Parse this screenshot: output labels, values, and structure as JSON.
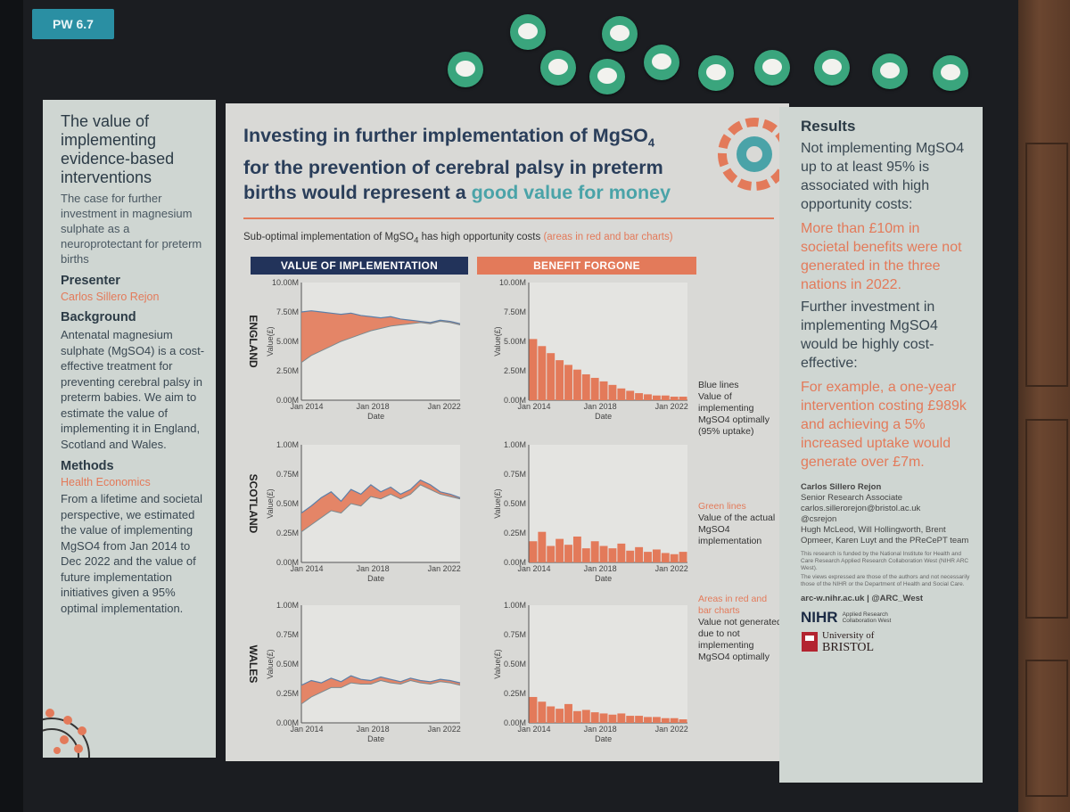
{
  "tag": "PW 6.7",
  "left": {
    "title": "The value of implementing evidence-based interventions",
    "subtitle": "The case for further investment in magnesium sulphate as a neuroprotectant for preterm births",
    "presenter_heading": "Presenter",
    "presenter_name": "Carlos Sillero Rejon",
    "background_heading": "Background",
    "background_text": "Antenatal magnesium sulphate (MgSO4) is a cost-effective treatment for preventing cerebral palsy in preterm babies. We aim to estimate the value of implementing it in England, Scotland and Wales.",
    "methods_heading": "Methods",
    "methods_subheading": "Health Economics",
    "methods_text": "From a lifetime and societal perspective, we estimated the value of implementing MgSO4 from Jan 2014 to Dec 2022 and the value of future implementation initiatives given a 95% optimal implementation."
  },
  "middle": {
    "title_line1": "Investing in further implementation of MgSO",
    "title_sub": "4",
    "title_line2": "for the prevention of cerebral palsy in preterm",
    "title_line3_a": "births would represent a ",
    "title_line3_b": "good value for money",
    "subheading_a": "Sub-optimal implementation of MgSO",
    "subheading_sub": "4",
    "subheading_b": " has high opportunity costs ",
    "subheading_c": "(areas in red and bar charts)",
    "col_header_left": "VALUE OF IMPLEMENTATION",
    "col_header_right": "BENEFIT FORGONE",
    "notes": {
      "blue_title": "Blue lines",
      "blue_text": "Value of implementing MgSO4 optimally (95% uptake)",
      "green_title": "Green lines",
      "green_text": "Value of the actual MgSO4 implementation",
      "red_title": "Areas in red and bar charts",
      "red_text": "Value not generated due to not implementing MgSO4 optimally"
    }
  },
  "right": {
    "heading": "Results",
    "text1": "Not implementing MgSO4 up to at least 95% is associated with high opportunity costs:",
    "highlight1": "More than £10m in societal benefits were not generated in the three nations in 2022.",
    "text2": "Further investment in implementing MgSO4 would be highly cost-effective:",
    "highlight2": "For example, a one-year intervention costing £989k and achieving a 5% increased uptake would generate over £7m.",
    "author_name": "Carlos Sillero Rejon",
    "author_role": "Senior Research Associate",
    "author_email": "carlos.sillerorejon@bristol.ac.uk",
    "author_handle": "@csrejon",
    "coauthors": "Hugh McLeod, Will Hollingworth, Brent Opmeer, Karen Luyt and the PReCePT team",
    "funding": "This research is funded by the National Institute for Health and Care Research Applied Research Collaboration West (NIHR ARC West).",
    "disclaimer": "The views expressed are those of the authors and not necessarily those of the NIHR or the Department of Health and Social Care.",
    "website": "arc-w.nihr.ac.uk | @ARC_West",
    "nihr": "NIHR",
    "nihr_sub": "Applied Research Collaboration West",
    "uni1": "University of",
    "uni2": "BRISTOL"
  },
  "chart_data": [
    {
      "type": "area",
      "region": "ENGLAND",
      "panel": "VALUE OF IMPLEMENTATION",
      "ylabel": "Value(£)",
      "xlabel": "Date",
      "yticks": [
        "0.00M",
        "2.50M",
        "5.00M",
        "7.50M",
        "10.00M"
      ],
      "xticks": [
        "Jan 2014",
        "Jan 2018",
        "Jan 2022"
      ],
      "ylim": [
        0,
        10
      ],
      "unit": "M",
      "series": [
        {
          "values": [
            7.5,
            7.6,
            7.5,
            7.4,
            7.3,
            7.4,
            7.2,
            7.1,
            7.0,
            7.1,
            6.9,
            6.8,
            6.7,
            6.6,
            6.8,
            6.7,
            6.5
          ]
        },
        {
          "values": [
            3.2,
            3.8,
            4.2,
            4.6,
            5.0,
            5.3,
            5.6,
            5.9,
            6.1,
            6.3,
            6.4,
            6.5,
            6.6,
            6.5,
            6.7,
            6.6,
            6.4
          ]
        }
      ]
    },
    {
      "type": "area",
      "region": "SCOTLAND",
      "panel": "VALUE OF IMPLEMENTATION",
      "ylabel": "Value(£)",
      "xlabel": "Date",
      "yticks": [
        "0.00M",
        "0.25M",
        "0.50M",
        "0.75M",
        "1.00M"
      ],
      "xticks": [
        "Jan 2014",
        "Jan 2018",
        "Jan 2022"
      ],
      "ylim": [
        0,
        1
      ],
      "unit": "M",
      "series": [
        {
          "values": [
            0.42,
            0.48,
            0.55,
            0.6,
            0.52,
            0.62,
            0.58,
            0.66,
            0.6,
            0.64,
            0.58,
            0.62,
            0.7,
            0.66,
            0.6,
            0.58,
            0.55
          ]
        },
        {
          "values": [
            0.26,
            0.32,
            0.38,
            0.44,
            0.42,
            0.5,
            0.48,
            0.56,
            0.54,
            0.58,
            0.54,
            0.58,
            0.66,
            0.62,
            0.58,
            0.56,
            0.54
          ]
        }
      ]
    },
    {
      "type": "area",
      "region": "WALES",
      "panel": "VALUE OF IMPLEMENTATION",
      "ylabel": "Value(£)",
      "xlabel": "Date",
      "yticks": [
        "0.00M",
        "0.25M",
        "0.50M",
        "0.75M",
        "1.00M"
      ],
      "xticks": [
        "Jan 2014",
        "Jan 2018",
        "Jan 2022"
      ],
      "ylim": [
        0,
        1
      ],
      "unit": "M",
      "series": [
        {
          "values": [
            0.32,
            0.36,
            0.34,
            0.38,
            0.35,
            0.4,
            0.37,
            0.36,
            0.39,
            0.37,
            0.35,
            0.38,
            0.36,
            0.35,
            0.37,
            0.36,
            0.34
          ]
        },
        {
          "values": [
            0.16,
            0.22,
            0.26,
            0.3,
            0.3,
            0.34,
            0.33,
            0.33,
            0.36,
            0.34,
            0.33,
            0.36,
            0.34,
            0.33,
            0.35,
            0.34,
            0.32
          ]
        }
      ]
    },
    {
      "type": "bar",
      "region": "ENGLAND",
      "panel": "BENEFIT FORGONE",
      "ylabel": "Value(£)",
      "xlabel": "Date",
      "yticks": [
        "0.00M",
        "2.50M",
        "5.00M",
        "7.50M",
        "10.00M"
      ],
      "xticks": [
        "Jan 2014",
        "Jan 2018",
        "Jan 2022"
      ],
      "ylim": [
        0,
        10
      ],
      "unit": "M",
      "values": [
        5.2,
        4.6,
        4.0,
        3.4,
        3.0,
        2.6,
        2.2,
        1.9,
        1.6,
        1.3,
        1.0,
        0.8,
        0.6,
        0.5,
        0.4,
        0.4,
        0.3,
        0.3
      ]
    },
    {
      "type": "bar",
      "region": "SCOTLAND",
      "panel": "BENEFIT FORGONE",
      "ylabel": "Value(£)",
      "xlabel": "Date",
      "yticks": [
        "0.00M",
        "0.25M",
        "0.50M",
        "0.75M",
        "1.00M"
      ],
      "xticks": [
        "Jan 2014",
        "Jan 2018",
        "Jan 2022"
      ],
      "ylim": [
        0,
        1
      ],
      "unit": "M",
      "values": [
        0.18,
        0.26,
        0.14,
        0.2,
        0.15,
        0.22,
        0.12,
        0.18,
        0.14,
        0.12,
        0.16,
        0.1,
        0.13,
        0.09,
        0.11,
        0.08,
        0.07,
        0.09
      ]
    },
    {
      "type": "bar",
      "region": "WALES",
      "panel": "BENEFIT FORGONE",
      "ylabel": "Value(£)",
      "xlabel": "Date",
      "yticks": [
        "0.00M",
        "0.25M",
        "0.50M",
        "0.75M",
        "1.00M"
      ],
      "xticks": [
        "Jan 2014",
        "Jan 2018",
        "Jan 2022"
      ],
      "ylim": [
        0,
        1
      ],
      "unit": "M",
      "values": [
        0.22,
        0.18,
        0.14,
        0.12,
        0.16,
        0.1,
        0.11,
        0.09,
        0.08,
        0.07,
        0.08,
        0.06,
        0.06,
        0.05,
        0.05,
        0.04,
        0.04,
        0.03
      ]
    }
  ],
  "colors": {
    "orange": "#e37a5a",
    "navy": "#22335a",
    "teal": "#4aa3a8",
    "blue_line": "#5c7fa8",
    "green_badge": "#3aa57d"
  }
}
